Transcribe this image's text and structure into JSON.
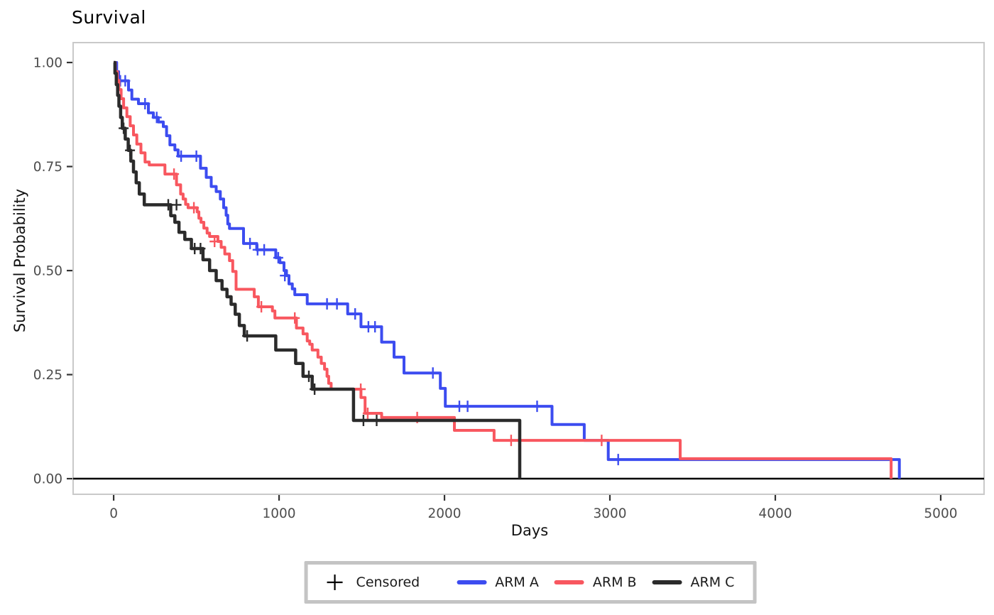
{
  "title": "Survival",
  "legend": {
    "censored_label": "Censored",
    "censored_marker": "+",
    "items": [
      {
        "label": "ARM A",
        "color": "#3c4cf0"
      },
      {
        "label": "ARM B",
        "color": "#f8575f"
      },
      {
        "label": "ARM C",
        "color": "#2b2b2b"
      }
    ]
  },
  "chart_data": {
    "type": "line",
    "subtype": "kaplan-meier-step",
    "title": "Survival",
    "xlabel": "Days",
    "ylabel": "Survival Probability",
    "xlim": [
      -245,
      5262
    ],
    "ylim": [
      -0.0375,
      1.0478
    ],
    "grid": false,
    "legend_position": "bottom",
    "panel_border_color": "#c9c9c9",
    "tick_color": "#333333",
    "tick_label_color": "#4d4d4d",
    "xticks": [
      {
        "value": 0,
        "label": "0"
      },
      {
        "value": 1000,
        "label": "1000"
      },
      {
        "value": 2000,
        "label": "2000"
      },
      {
        "value": 3000,
        "label": "3000"
      },
      {
        "value": 4000,
        "label": "4000"
      },
      {
        "value": 5000,
        "label": "5000"
      }
    ],
    "yticks": [
      {
        "value": 0.0,
        "label": "0.00"
      },
      {
        "value": 0.25,
        "label": "0.25"
      },
      {
        "value": 0.5,
        "label": "0.50"
      },
      {
        "value": 0.75,
        "label": "0.75"
      },
      {
        "value": 1.0,
        "label": "1.00"
      }
    ],
    "baseline": {
      "y": 0,
      "color": "#000000",
      "width": 2.5
    },
    "series": [
      {
        "name": "ARM A",
        "color": "#3c4cf0",
        "line_width": 4,
        "steps": [
          [
            0,
            1.0
          ],
          [
            18,
            0.978
          ],
          [
            30,
            0.956
          ],
          [
            90,
            0.934
          ],
          [
            110,
            0.912
          ],
          [
            150,
            0.901
          ],
          [
            210,
            0.879
          ],
          [
            240,
            0.868
          ],
          [
            270,
            0.857
          ],
          [
            300,
            0.846
          ],
          [
            320,
            0.824
          ],
          [
            340,
            0.802
          ],
          [
            370,
            0.79
          ],
          [
            390,
            0.775
          ],
          [
            525,
            0.746
          ],
          [
            560,
            0.724
          ],
          [
            590,
            0.702
          ],
          [
            620,
            0.69
          ],
          [
            645,
            0.672
          ],
          [
            665,
            0.651
          ],
          [
            680,
            0.633
          ],
          [
            690,
            0.612
          ],
          [
            700,
            0.601
          ],
          [
            785,
            0.565
          ],
          [
            865,
            0.55
          ],
          [
            980,
            0.531
          ],
          [
            1005,
            0.519
          ],
          [
            1030,
            0.5
          ],
          [
            1045,
            0.488
          ],
          [
            1060,
            0.468
          ],
          [
            1080,
            0.456
          ],
          [
            1095,
            0.442
          ],
          [
            1170,
            0.42
          ],
          [
            1415,
            0.396
          ],
          [
            1495,
            0.365
          ],
          [
            1620,
            0.328
          ],
          [
            1695,
            0.292
          ],
          [
            1755,
            0.254
          ],
          [
            1975,
            0.217
          ],
          [
            2005,
            0.174
          ],
          [
            2650,
            0.13
          ],
          [
            2845,
            0.092
          ],
          [
            2990,
            0.046
          ],
          [
            4750,
            0
          ]
        ],
        "censored": [
          [
            40,
            0.956
          ],
          [
            70,
            0.956
          ],
          [
            190,
            0.901
          ],
          [
            260,
            0.868
          ],
          [
            408,
            0.775
          ],
          [
            500,
            0.775
          ],
          [
            824,
            0.565
          ],
          [
            870,
            0.55
          ],
          [
            910,
            0.55
          ],
          [
            995,
            0.531
          ],
          [
            1035,
            0.488
          ],
          [
            1290,
            0.42
          ],
          [
            1350,
            0.42
          ],
          [
            1460,
            0.396
          ],
          [
            1540,
            0.365
          ],
          [
            1580,
            0.365
          ],
          [
            1930,
            0.254
          ],
          [
            2090,
            0.174
          ],
          [
            2140,
            0.174
          ],
          [
            2560,
            0.174
          ],
          [
            3050,
            0.046
          ]
        ]
      },
      {
        "name": "ARM B",
        "color": "#f8575f",
        "line_width": 4,
        "steps": [
          [
            0,
            1.0
          ],
          [
            10,
            0.978
          ],
          [
            22,
            0.957
          ],
          [
            32,
            0.935
          ],
          [
            45,
            0.913
          ],
          [
            60,
            0.891
          ],
          [
            80,
            0.87
          ],
          [
            100,
            0.848
          ],
          [
            120,
            0.826
          ],
          [
            140,
            0.804
          ],
          [
            165,
            0.783
          ],
          [
            190,
            0.761
          ],
          [
            215,
            0.754
          ],
          [
            310,
            0.732
          ],
          [
            380,
            0.706
          ],
          [
            405,
            0.684
          ],
          [
            420,
            0.672
          ],
          [
            435,
            0.659
          ],
          [
            450,
            0.651
          ],
          [
            505,
            0.641
          ],
          [
            515,
            0.626
          ],
          [
            528,
            0.616
          ],
          [
            545,
            0.602
          ],
          [
            565,
            0.59
          ],
          [
            580,
            0.582
          ],
          [
            630,
            0.57
          ],
          [
            650,
            0.556
          ],
          [
            672,
            0.54
          ],
          [
            700,
            0.524
          ],
          [
            720,
            0.498
          ],
          [
            740,
            0.455
          ],
          [
            850,
            0.437
          ],
          [
            875,
            0.413
          ],
          [
            960,
            0.403
          ],
          [
            975,
            0.386
          ],
          [
            1105,
            0.362
          ],
          [
            1145,
            0.348
          ],
          [
            1170,
            0.331
          ],
          [
            1185,
            0.323
          ],
          [
            1200,
            0.309
          ],
          [
            1235,
            0.292
          ],
          [
            1255,
            0.277
          ],
          [
            1275,
            0.263
          ],
          [
            1290,
            0.246
          ],
          [
            1300,
            0.229
          ],
          [
            1315,
            0.215
          ],
          [
            1495,
            0.195
          ],
          [
            1520,
            0.157
          ],
          [
            1620,
            0.147
          ],
          [
            2060,
            0.116
          ],
          [
            2300,
            0.092
          ],
          [
            3425,
            0.048
          ],
          [
            4700,
            0
          ]
        ],
        "censored": [
          [
            365,
            0.732
          ],
          [
            485,
            0.651
          ],
          [
            610,
            0.57
          ],
          [
            893,
            0.413
          ],
          [
            1095,
            0.386
          ],
          [
            1494,
            0.215
          ],
          [
            1536,
            0.157
          ],
          [
            1835,
            0.147
          ],
          [
            2403,
            0.092
          ],
          [
            2950,
            0.092
          ]
        ]
      },
      {
        "name": "ARM C",
        "color": "#2b2b2b",
        "line_width": 4.5,
        "steps": [
          [
            0,
            1.0
          ],
          [
            8,
            0.974
          ],
          [
            16,
            0.947
          ],
          [
            24,
            0.921
          ],
          [
            32,
            0.895
          ],
          [
            42,
            0.868
          ],
          [
            52,
            0.842
          ],
          [
            70,
            0.816
          ],
          [
            88,
            0.789
          ],
          [
            104,
            0.763
          ],
          [
            120,
            0.737
          ],
          [
            136,
            0.711
          ],
          [
            155,
            0.684
          ],
          [
            185,
            0.658
          ],
          [
            345,
            0.632
          ],
          [
            370,
            0.616
          ],
          [
            395,
            0.592
          ],
          [
            430,
            0.575
          ],
          [
            470,
            0.553
          ],
          [
            540,
            0.526
          ],
          [
            580,
            0.5
          ],
          [
            620,
            0.476
          ],
          [
            655,
            0.455
          ],
          [
            685,
            0.437
          ],
          [
            710,
            0.419
          ],
          [
            735,
            0.395
          ],
          [
            760,
            0.368
          ],
          [
            790,
            0.343
          ],
          [
            980,
            0.309
          ],
          [
            1100,
            0.277
          ],
          [
            1145,
            0.246
          ],
          [
            1200,
            0.215
          ],
          [
            1450,
            0.14
          ],
          [
            2455,
            0
          ]
        ],
        "censored": [
          [
            60,
            0.842
          ],
          [
            99,
            0.789
          ],
          [
            330,
            0.658
          ],
          [
            380,
            0.658
          ],
          [
            490,
            0.553
          ],
          [
            525,
            0.553
          ],
          [
            807,
            0.343
          ],
          [
            1180,
            0.246
          ],
          [
            1215,
            0.215
          ],
          [
            1510,
            0.14
          ],
          [
            1590,
            0.14
          ]
        ]
      }
    ]
  }
}
